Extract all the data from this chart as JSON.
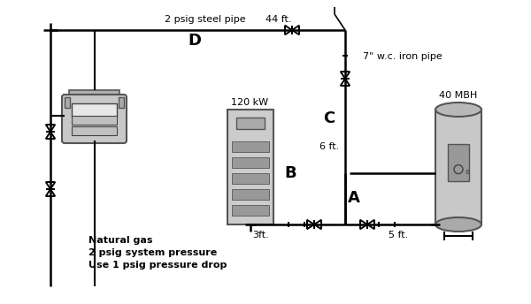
{
  "background_color": "#ffffff",
  "line_color": "#000000",
  "pipe_lw": 1.8,
  "label_D": "D",
  "label_C": "C",
  "label_B": "B",
  "label_A": "A",
  "label_44ft": "44 ft.",
  "label_6ft": "6 ft.",
  "label_3ft": "3ft.",
  "label_5ft": "5 ft.",
  "label_pipe_top": "2 psig steel pipe",
  "label_pipe_right": "7\" w.c. iron pipe",
  "label_120kw": "120 kW",
  "label_40mbh": "40 MBH",
  "label_natgas": "Natural gas",
  "label_pressure": "2 psig system pressure",
  "label_drop": "Use 1 psig pressure drop",
  "fig_width": 6.0,
  "fig_height": 3.44,
  "dpi": 100
}
